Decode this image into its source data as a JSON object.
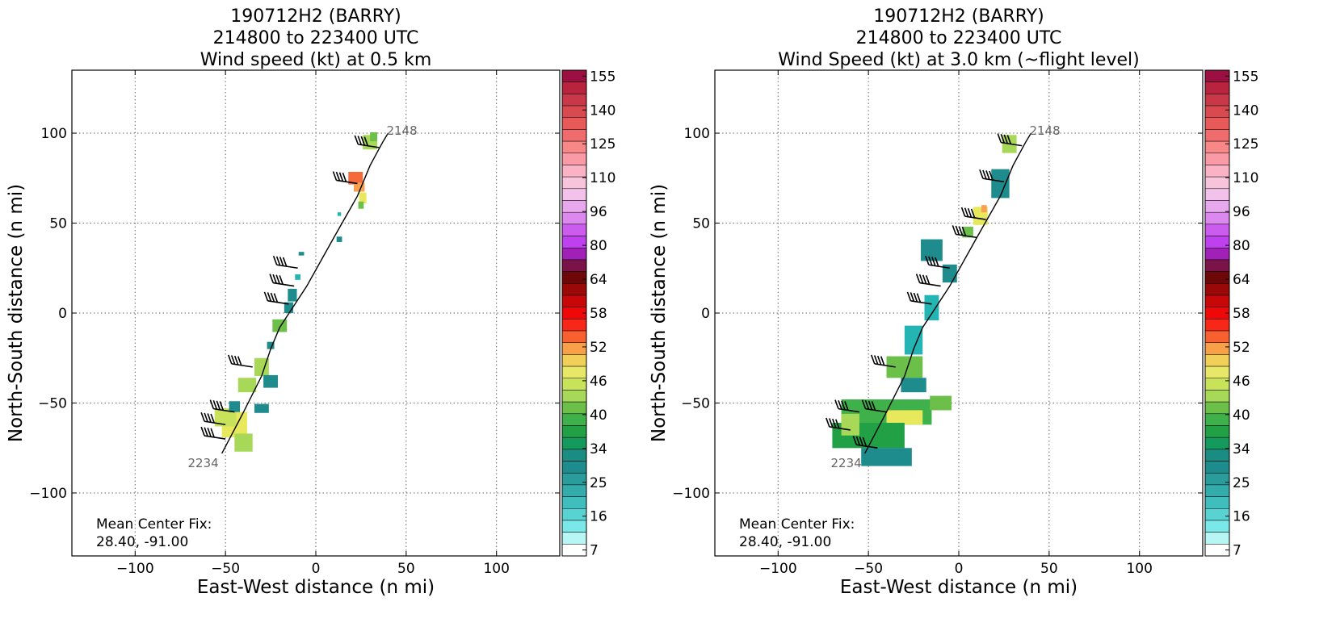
{
  "chart_data": [
    {
      "type": "heatmap",
      "title_lines": [
        "190712H2 (BARRY)",
        "214800 to 223400 UTC",
        "Wind speed (kt) at 0.5 km"
      ],
      "xlabel": "East-West distance (n mi)",
      "ylabel": "North-South distance (n mi)",
      "xlim": [
        -135,
        135
      ],
      "ylim": [
        -135,
        135
      ],
      "xticks": [
        -100,
        -50,
        0,
        50,
        100
      ],
      "yticks": [
        -100,
        -50,
        0,
        50,
        100
      ],
      "grid": true,
      "annotation_lines": [
        "Mean Center Fix:",
        "28.40, -91.00"
      ],
      "track": {
        "start_label": "2148",
        "end_label": "2234",
        "points": [
          [
            40,
            100
          ],
          [
            37,
            95
          ],
          [
            30,
            82
          ],
          [
            23,
            65
          ],
          [
            10,
            42
          ],
          [
            -5,
            15
          ],
          [
            -20,
            -8
          ],
          [
            -25,
            -20
          ],
          [
            -30,
            -35
          ],
          [
            -40,
            -55
          ],
          [
            -52,
            -78
          ]
        ]
      },
      "wind_cells": [
        {
          "x": 30,
          "y": 95,
          "w": 8,
          "h": 8,
          "color": "#a8d858"
        },
        {
          "x": 32,
          "y": 98,
          "w": 4,
          "h": 5,
          "color": "#6cc04a"
        },
        {
          "x": 22,
          "y": 75,
          "w": 8,
          "h": 7,
          "color": "#f46a3a"
        },
        {
          "x": 24,
          "y": 70,
          "w": 6,
          "h": 5,
          "color": "#f9a050"
        },
        {
          "x": 26,
          "y": 64,
          "w": 4,
          "h": 6,
          "color": "#e7e85c"
        },
        {
          "x": 25,
          "y": 60,
          "w": 3,
          "h": 4,
          "color": "#6cc04a"
        },
        {
          "x": 13,
          "y": 55,
          "w": 2,
          "h": 2,
          "color": "#24b4b4"
        },
        {
          "x": 13,
          "y": 41,
          "w": 3,
          "h": 3,
          "color": "#1e8c8c"
        },
        {
          "x": -8,
          "y": 33,
          "w": 3,
          "h": 2,
          "color": "#1e8c8c"
        },
        {
          "x": -10,
          "y": 20,
          "w": 3,
          "h": 3,
          "color": "#24b4b4"
        },
        {
          "x": -13,
          "y": 10,
          "w": 5,
          "h": 7,
          "color": "#1e8c8c"
        },
        {
          "x": -15,
          "y": 3,
          "w": 5,
          "h": 6,
          "color": "#1e8c8c"
        },
        {
          "x": -20,
          "y": -7,
          "w": 8,
          "h": 7,
          "color": "#6cc04a"
        },
        {
          "x": -25,
          "y": -18,
          "w": 4,
          "h": 4,
          "color": "#1e8c8c"
        },
        {
          "x": -30,
          "y": -30,
          "w": 8,
          "h": 10,
          "color": "#a8d858"
        },
        {
          "x": -25,
          "y": -38,
          "w": 8,
          "h": 7,
          "color": "#1e8c8c"
        },
        {
          "x": -38,
          "y": -40,
          "w": 10,
          "h": 8,
          "color": "#a8d858"
        },
        {
          "x": -30,
          "y": -53,
          "w": 8,
          "h": 5,
          "color": "#1e8c8c"
        },
        {
          "x": -45,
          "y": -62,
          "w": 14,
          "h": 14,
          "color": "#e7e85c"
        },
        {
          "x": -50,
          "y": -58,
          "w": 12,
          "h": 10,
          "color": "#c8e25a"
        },
        {
          "x": -40,
          "y": -72,
          "w": 10,
          "h": 10,
          "color": "#a8d858"
        },
        {
          "x": -45,
          "y": -52,
          "w": 6,
          "h": 6,
          "color": "#1e8c8c"
        }
      ],
      "barbs": [
        {
          "x": 35,
          "y": 92
        },
        {
          "x": 23,
          "y": 72
        },
        {
          "x": -10,
          "y": 25
        },
        {
          "x": -12,
          "y": 15
        },
        {
          "x": -15,
          "y": 5
        },
        {
          "x": -35,
          "y": -30
        },
        {
          "x": -45,
          "y": -55
        },
        {
          "x": -50,
          "y": -62
        },
        {
          "x": -50,
          "y": -70
        }
      ]
    },
    {
      "type": "heatmap",
      "title_lines": [
        "190712H2 (BARRY)",
        "214800 to 223400 UTC",
        "Wind Speed (kt) at 3.0 km (~flight level)"
      ],
      "xlabel": "East-West distance (n mi)",
      "ylabel": "North-South distance (n mi)",
      "xlim": [
        -135,
        135
      ],
      "ylim": [
        -135,
        135
      ],
      "xticks": [
        -100,
        -50,
        0,
        50,
        100
      ],
      "yticks": [
        -100,
        -50,
        0,
        50,
        100
      ],
      "grid": true,
      "annotation_lines": [
        "Mean Center Fix:",
        "28.40, -91.00"
      ],
      "track": {
        "start_label": "2148",
        "end_label": "2234",
        "points": [
          [
            40,
            100
          ],
          [
            37,
            95
          ],
          [
            30,
            82
          ],
          [
            23,
            65
          ],
          [
            10,
            42
          ],
          [
            -5,
            15
          ],
          [
            -20,
            -8
          ],
          [
            -25,
            -20
          ],
          [
            -30,
            -35
          ],
          [
            -40,
            -55
          ],
          [
            -52,
            -78
          ]
        ]
      },
      "wind_cells": [
        {
          "x": 28,
          "y": 94,
          "w": 8,
          "h": 10,
          "color": "#a8d858"
        },
        {
          "x": 23,
          "y": 72,
          "w": 10,
          "h": 16,
          "color": "#1e8c8c"
        },
        {
          "x": 12,
          "y": 54,
          "w": 8,
          "h": 10,
          "color": "#e7e85c"
        },
        {
          "x": 14,
          "y": 58,
          "w": 3,
          "h": 4,
          "color": "#f9a050"
        },
        {
          "x": 5,
          "y": 45,
          "w": 6,
          "h": 6,
          "color": "#6cc04a"
        },
        {
          "x": -15,
          "y": 35,
          "w": 12,
          "h": 12,
          "color": "#1e8c8c"
        },
        {
          "x": -5,
          "y": 22,
          "w": 8,
          "h": 10,
          "color": "#1e8c8c"
        },
        {
          "x": -15,
          "y": 3,
          "w": 8,
          "h": 14,
          "color": "#24b4b4"
        },
        {
          "x": -25,
          "y": -15,
          "w": 10,
          "h": 16,
          "color": "#24b4b4"
        },
        {
          "x": -30,
          "y": -30,
          "w": 20,
          "h": 12,
          "color": "#6cc04a"
        },
        {
          "x": -25,
          "y": -40,
          "w": 14,
          "h": 8,
          "color": "#1e8c8c"
        },
        {
          "x": -40,
          "y": -55,
          "w": 50,
          "h": 14,
          "color": "#3eb14a"
        },
        {
          "x": -30,
          "y": -58,
          "w": 20,
          "h": 8,
          "color": "#e7e85c"
        },
        {
          "x": -50,
          "y": -68,
          "w": 40,
          "h": 14,
          "color": "#22a046"
        },
        {
          "x": -40,
          "y": -80,
          "w": 28,
          "h": 10,
          "color": "#1e8c8c"
        },
        {
          "x": -60,
          "y": -62,
          "w": 10,
          "h": 12,
          "color": "#a8d858"
        },
        {
          "x": -10,
          "y": -50,
          "w": 12,
          "h": 8,
          "color": "#6cc04a"
        }
      ],
      "barbs": [
        {
          "x": 35,
          "y": 93
        },
        {
          "x": 25,
          "y": 73
        },
        {
          "x": 15,
          "y": 52
        },
        {
          "x": 10,
          "y": 42
        },
        {
          "x": -5,
          "y": 25
        },
        {
          "x": -10,
          "y": 15
        },
        {
          "x": -15,
          "y": 5
        },
        {
          "x": -35,
          "y": -30
        },
        {
          "x": -40,
          "y": -55
        },
        {
          "x": -55,
          "y": -55
        },
        {
          "x": -60,
          "y": -65
        },
        {
          "x": -45,
          "y": -75
        }
      ]
    }
  ],
  "colorbar": {
    "tick_labels": [
      "155",
      "140",
      "125",
      "110",
      "96",
      "80",
      "64",
      "58",
      "52",
      "46",
      "40",
      "34",
      "25",
      "16",
      "7"
    ],
    "colors": [
      "#9b1040",
      "#b8243e",
      "#c93848",
      "#d84a50",
      "#e85a5a",
      "#f06c6c",
      "#f88888",
      "#fa9aa6",
      "#fbb2c4",
      "#f8c4dc",
      "#f2c2ea",
      "#e8a8ee",
      "#dc88ee",
      "#cc5cee",
      "#be40ee",
      "#a020b8",
      "#7a1448",
      "#6e0808",
      "#9a0808",
      "#c80808",
      "#f00808",
      "#f82818",
      "#f86030",
      "#f8a048",
      "#f0d058",
      "#e8e868",
      "#c8e25a",
      "#a8d858",
      "#6cc04a",
      "#3eb14a",
      "#22a046",
      "#139a5c",
      "#1a8c82",
      "#1e8c8c",
      "#2a9c9c",
      "#34acac",
      "#40bebe",
      "#58d2d2",
      "#7ae8e8",
      "#b8f6f6",
      "#ffffff"
    ]
  }
}
